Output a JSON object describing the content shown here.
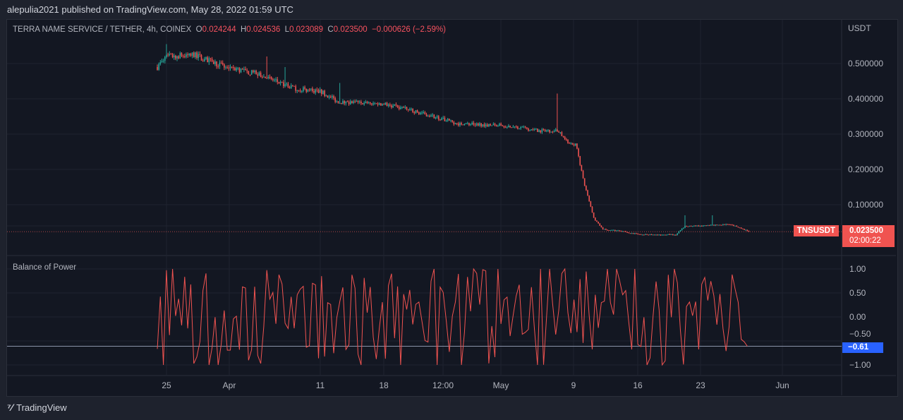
{
  "header": {
    "published": "alepulia2021 published on TradingView.com, May 28, 2022 01:59 UTC"
  },
  "legend": {
    "symbol": "TERRA NAME SERVICE / TETHER, 4h, COINEX",
    "o_label": "O",
    "o": "0.024244",
    "h_label": "H",
    "h": "0.024536",
    "l_label": "L",
    "l": "0.023089",
    "c_label": "C",
    "c": "0.023500",
    "change": "−0.000626 (−2.59%)"
  },
  "price_axis": {
    "unit": "USDT",
    "ticks": [
      "0.500000",
      "0.400000",
      "0.300000",
      "0.200000",
      "0.100000"
    ],
    "symbol_tag": "TNSUSDT",
    "last_price": "0.023500",
    "countdown": "02:00:22"
  },
  "bop": {
    "title": "Balance of Power",
    "ticks": [
      "1.00",
      "0.50",
      "0.00",
      "−0.50",
      "−1.00"
    ],
    "last_value": "−0.61"
  },
  "time_axis": {
    "labels": [
      "25",
      "Apr",
      "11",
      "18",
      "12:00",
      "May",
      "9",
      "16",
      "23",
      "Jun"
    ]
  },
  "footer": {
    "brand": "TradingView"
  },
  "colors": {
    "up": "#26a69a",
    "down": "#ef5350",
    "bop": "#f05350",
    "accent": "#2962ff"
  },
  "chart_data": {
    "type": "candlestick",
    "title": "TERRA NAME SERVICE / TETHER, 4h, COINEX",
    "ylabel": "USDT",
    "ylim": [
      0,
      0.56
    ],
    "price_anchors_day_since_mar24": [
      [
        0,
        0.49
      ],
      [
        1,
        0.52
      ],
      [
        4,
        0.525
      ],
      [
        7,
        0.495
      ],
      [
        11,
        0.47
      ],
      [
        15,
        0.43
      ],
      [
        18,
        0.42
      ],
      [
        20,
        0.39
      ],
      [
        25,
        0.385
      ],
      [
        29,
        0.36
      ],
      [
        33,
        0.33
      ],
      [
        38,
        0.325
      ],
      [
        42,
        0.31
      ],
      [
        44,
        0.31
      ],
      [
        45,
        0.28
      ],
      [
        46,
        0.27
      ],
      [
        47,
        0.15
      ],
      [
        48,
        0.06
      ],
      [
        49,
        0.03
      ],
      [
        51,
        0.025
      ],
      [
        53,
        0.015
      ],
      [
        57,
        0.015
      ],
      [
        58,
        0.04
      ],
      [
        60,
        0.04
      ],
      [
        63,
        0.045
      ],
      [
        65,
        0.0235
      ]
    ],
    "spikes": [
      [
        1,
        0.555
      ],
      [
        12,
        0.52
      ],
      [
        14,
        0.49
      ],
      [
        20,
        0.445
      ],
      [
        44,
        0.415
      ],
      [
        47,
        0.17
      ],
      [
        58,
        0.07
      ],
      [
        61,
        0.07
      ]
    ],
    "bop_range": [
      -1,
      1
    ],
    "bop_last": -0.61
  }
}
